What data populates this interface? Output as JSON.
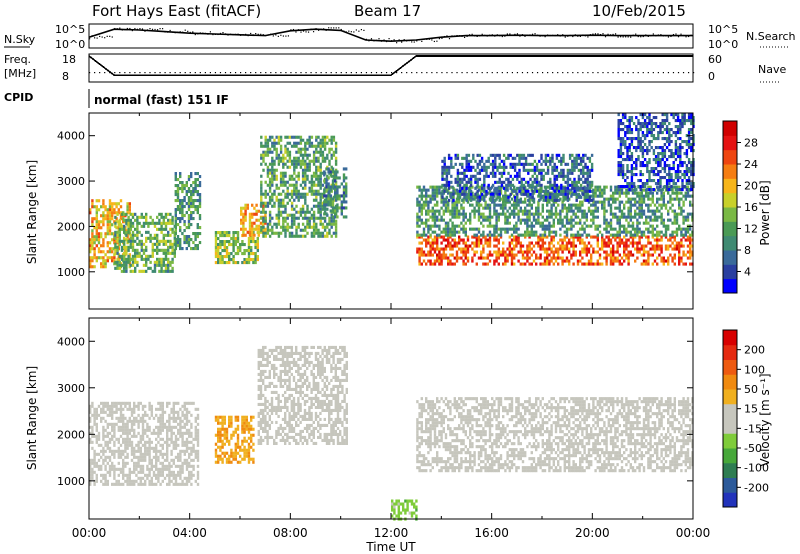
{
  "header": {
    "title": "Fort Hays East (fitACF)",
    "beam": "Beam 17",
    "date": "10/Feb/2015"
  },
  "panels": {
    "nsky": {
      "label": "N.Sky",
      "ticks": [
        "10^5",
        "10^0"
      ],
      "right_label": "N.Search",
      "right_ticks": [
        "10^5",
        "10^0"
      ]
    },
    "freq": {
      "label": "Freq.",
      "unit": "[MHz]",
      "ticks": [
        "18",
        "8"
      ],
      "right_label": "Nave",
      "right_ticks": [
        "60",
        "0"
      ]
    },
    "cpid": {
      "label": "CPID",
      "text": "normal (fast) 151 IF"
    }
  },
  "colorbars": {
    "power": {
      "title": "Power [dB]",
      "ticks": [
        "28",
        "24",
        "20",
        "16",
        "12",
        "8",
        "4"
      ],
      "colors": [
        "#0000ff",
        "#2a3fa0",
        "#3a6a9a",
        "#3f8a72",
        "#4a9a55",
        "#7ab844",
        "#c8d02a",
        "#f7b51a",
        "#f57d12",
        "#ee4510",
        "#e51212",
        "#d00000"
      ]
    },
    "velocity": {
      "title": "Velocity [m s⁻¹]",
      "ticks": [
        "200",
        "100",
        "50",
        "15",
        "-15",
        "-50",
        "-100",
        "-200"
      ],
      "colors": [
        "#2233bb",
        "#2c5a9a",
        "#2e7d52",
        "#47a83a",
        "#7fcc3a",
        "#c6c6bd",
        "#c6c6bd",
        "#f0b020",
        "#f08a10",
        "#ee5a10",
        "#e52a10",
        "#d80000"
      ]
    }
  },
  "axes": {
    "ylabel": "Slant Range [km]",
    "xlabel": "Time UT",
    "yticks": [
      "1000",
      "2000",
      "3000",
      "4000"
    ],
    "xticks": [
      "00:00",
      "04:00",
      "08:00",
      "12:00",
      "16:00",
      "20:00",
      "00:00"
    ]
  },
  "chart_data": {
    "type": "heatmap",
    "title": "Fort Hays East (fitACF)",
    "xlabel": "Time UT",
    "ylabel": "Slant Range [km]",
    "xlim": [
      0,
      24
    ],
    "ylim": [
      180,
      4500
    ],
    "power_range": [
      0,
      30
    ],
    "velocity_range": [
      -200,
      200
    ],
    "series": [
      {
        "name": "Power [dB]",
        "regions": [
          {
            "t": [
              0.0,
              1.6
            ],
            "r": [
              1100,
              2600
            ],
            "v": 18
          },
          {
            "t": [
              1.0,
              3.4
            ],
            "r": [
              1000,
              2300
            ],
            "v": 12
          },
          {
            "t": [
              3.4,
              4.4
            ],
            "r": [
              1500,
              3200
            ],
            "v": 10
          },
          {
            "t": [
              5.0,
              6.7
            ],
            "r": [
              1200,
              1900
            ],
            "v": 14
          },
          {
            "t": [
              6.0,
              7.0
            ],
            "r": [
              1800,
              2500
            ],
            "v": 20
          },
          {
            "t": [
              6.8,
              9.8
            ],
            "r": [
              1800,
              4000
            ],
            "v": 11
          },
          {
            "t": [
              9.3,
              10.2
            ],
            "r": [
              2200,
              3300
            ],
            "v": 9
          },
          {
            "t": [
              13.0,
              24.0
            ],
            "r": [
              1200,
              1800
            ],
            "v": 23
          },
          {
            "t": [
              13.0,
              24.0
            ],
            "r": [
              1800,
              2900
            ],
            "v": 10
          },
          {
            "t": [
              14.0,
              20.0
            ],
            "r": [
              2600,
              3600
            ],
            "v": 6
          },
          {
            "t": [
              21.0,
              24.0
            ],
            "r": [
              2800,
              4500
            ],
            "v": 5
          }
        ]
      },
      {
        "name": "Velocity [m s⁻¹]",
        "regions": [
          {
            "t": [
              0.0,
              4.3
            ],
            "r": [
              900,
              2700
            ],
            "v": 0
          },
          {
            "t": [
              5.0,
              6.5
            ],
            "r": [
              1400,
              2400
            ],
            "v": 60
          },
          {
            "t": [
              6.7,
              10.2
            ],
            "r": [
              1800,
              3900
            ],
            "v": 5
          },
          {
            "t": [
              13.0,
              24.0
            ],
            "r": [
              1200,
              2800
            ],
            "v": 0
          },
          {
            "t": [
              12.0,
              13.0
            ],
            "r": [
              200,
              600
            ],
            "v": -50
          }
        ]
      }
    ],
    "nsky_log": [
      2.2,
      4.2,
      4.0,
      3.6,
      3.2,
      3.0,
      2.8,
      2.6,
      3.8,
      4.2,
      3.9,
      1.5,
      1.2,
      1.5,
      2.2,
      2.6,
      2.6,
      2.7,
      2.6,
      2.6,
      2.7,
      2.6,
      2.6,
      2.6,
      2.6
    ],
    "freq_mhz": [
      18,
      10,
      10,
      10,
      10,
      10,
      10,
      10,
      10,
      10,
      10,
      10,
      10,
      18,
      18,
      18,
      18,
      18,
      18,
      18,
      18,
      18,
      18,
      18,
      18
    ],
    "freq_change_hours": [
      1.0,
      13.0
    ]
  }
}
